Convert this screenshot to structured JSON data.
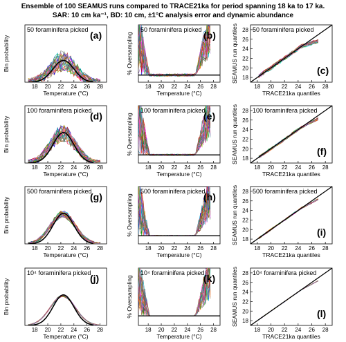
{
  "figure": {
    "title_line1": "Ensemble of 100 SEAMUS runs compared to TRACE21ka for period spanning 18 ka to 17 ka.",
    "title_line2": "SAR: 10 cm ka⁻¹, BD: 10 cm, ±1°C analysis error and dynamic abundance"
  },
  "chart_data": [
    {
      "type": "line",
      "panel": "(a)",
      "tag": "50 foraminifera picked",
      "xlabel": "Temperature (°C)",
      "ylabel": "Bin probability",
      "xlim": [
        16.5,
        29
      ],
      "ylim": [
        0,
        0.42
      ],
      "xticks": [
        18,
        20,
        22,
        24,
        26,
        28
      ],
      "ensemble_runs": 100,
      "series": [
        {
          "name": "TRACE21ka",
          "x": [
            17,
            18,
            19,
            20,
            21,
            22,
            22.5,
            23,
            24,
            25,
            26,
            27
          ],
          "values": [
            0,
            0.005,
            0.02,
            0.05,
            0.1,
            0.15,
            0.16,
            0.15,
            0.1,
            0.05,
            0.015,
            0
          ]
        }
      ]
    },
    {
      "type": "line",
      "panel": "(b)",
      "tag": "50 foraminifera picked",
      "xlabel": "Temperature (°C)",
      "ylabel": "% Oversampling",
      "xlim": [
        16.5,
        29
      ],
      "ylim": [
        -100,
        700
      ],
      "xticks": [
        18,
        20,
        22,
        24,
        26,
        28
      ],
      "ensemble_runs": 100,
      "series": [
        {
          "x": [
            16.5,
            29
          ],
          "values": [
            0,
            0
          ]
        }
      ]
    },
    {
      "type": "scatter",
      "panel": "(c)",
      "tag": "50 foraminifera picked",
      "xlabel": "TRACE21ka quantiles",
      "ylabel": "SEAMUS run quantiles",
      "xlim": [
        17,
        29
      ],
      "ylim": [
        17,
        29
      ],
      "xticks": [
        18,
        20,
        22,
        24,
        26,
        28
      ],
      "yticks": [
        18,
        20,
        22,
        24,
        26,
        28
      ],
      "ensemble_runs": 100,
      "reference": "1:1 line"
    },
    {
      "type": "line",
      "panel": "(d)",
      "tag": "100 foraminifera picked",
      "xlabel": "Temperature (°C)",
      "ylabel": "Bin probability",
      "xlim": [
        16.5,
        29
      ],
      "ylim": [
        0,
        0.3
      ],
      "xticks": [
        18,
        20,
        22,
        24,
        26,
        28
      ],
      "ensemble_runs": 100,
      "series": [
        {
          "name": "TRACE21ka",
          "x": [
            17,
            18,
            19,
            20,
            21,
            22,
            22.5,
            23,
            24,
            25,
            26,
            27
          ],
          "values": [
            0,
            0.005,
            0.02,
            0.05,
            0.1,
            0.15,
            0.16,
            0.15,
            0.1,
            0.05,
            0.015,
            0
          ]
        }
      ]
    },
    {
      "type": "line",
      "panel": "(e)",
      "tag": "100 foraminifera picked",
      "xlabel": "Temperature (°C)",
      "ylabel": "% Oversampling",
      "xlim": [
        16.5,
        29
      ],
      "ylim": [
        -100,
        600
      ],
      "xticks": [
        18,
        20,
        22,
        24,
        26,
        28
      ],
      "ensemble_runs": 100,
      "series": [
        {
          "x": [
            16.5,
            29
          ],
          "values": [
            0,
            0
          ]
        }
      ]
    },
    {
      "type": "scatter",
      "panel": "(f)",
      "tag": "100 foraminifera picked",
      "xlabel": "TRACE21ka quantiles",
      "ylabel": "SEAMUS run quantiles",
      "xlim": [
        17,
        29
      ],
      "ylim": [
        17,
        29
      ],
      "xticks": [
        18,
        20,
        22,
        24,
        26,
        28
      ],
      "yticks": [
        18,
        20,
        22,
        24,
        26,
        28
      ],
      "ensemble_runs": 100,
      "reference": "1:1 line"
    },
    {
      "type": "line",
      "panel": "(g)",
      "tag": "500 foraminifera picked",
      "xlabel": "Temperature (°C)",
      "ylabel": "Bin probability",
      "xlim": [
        16.5,
        29
      ],
      "ylim": [
        0,
        0.3
      ],
      "xticks": [
        18,
        20,
        22,
        24,
        26,
        28
      ],
      "ensemble_runs": 100,
      "series": [
        {
          "name": "TRACE21ka",
          "x": [
            17,
            18,
            19,
            20,
            21,
            22,
            22.5,
            23,
            24,
            25,
            26,
            27
          ],
          "values": [
            0,
            0.005,
            0.02,
            0.05,
            0.1,
            0.15,
            0.16,
            0.15,
            0.1,
            0.05,
            0.015,
            0
          ]
        }
      ]
    },
    {
      "type": "line",
      "panel": "(h)",
      "tag": "500 foraminifera picked",
      "xlabel": "Temperature (°C)",
      "ylabel": "% Oversampling",
      "xlim": [
        16.5,
        29
      ],
      "ylim": [
        -100,
        600
      ],
      "xticks": [
        18,
        20,
        22,
        24,
        26,
        28
      ],
      "ensemble_runs": 100,
      "series": [
        {
          "x": [
            16.5,
            29
          ],
          "values": [
            0,
            0
          ]
        }
      ]
    },
    {
      "type": "scatter",
      "panel": "(i)",
      "tag": "500 foraminifera picked",
      "xlabel": "TRACE21ka quantiles",
      "ylabel": "SEAMUS run quantiles",
      "xlim": [
        17,
        29
      ],
      "ylim": [
        17,
        29
      ],
      "xticks": [
        18,
        20,
        22,
        24,
        26,
        28
      ],
      "yticks": [
        18,
        20,
        22,
        24,
        26,
        28
      ],
      "ensemble_runs": 100,
      "reference": "1:1 line"
    },
    {
      "type": "line",
      "panel": "(j)",
      "tag": "10⁴ foraminifera picked",
      "xlabel": "Temperature (°C)",
      "ylabel": "Bin probability",
      "xlim": [
        16.5,
        29
      ],
      "ylim": [
        0,
        0.3
      ],
      "xticks": [
        18,
        20,
        22,
        24,
        26,
        28
      ],
      "ensemble_runs": 100,
      "series": [
        {
          "name": "TRACE21ka",
          "x": [
            17,
            18,
            19,
            20,
            21,
            22,
            22.5,
            23,
            24,
            25,
            26,
            27
          ],
          "values": [
            0,
            0.005,
            0.02,
            0.05,
            0.1,
            0.15,
            0.16,
            0.15,
            0.1,
            0.05,
            0.015,
            0
          ]
        }
      ]
    },
    {
      "type": "line",
      "panel": "(k)",
      "tag": "10⁴ foraminifera picked",
      "xlabel": "Temperature (°C)",
      "ylabel": "% Oversampling",
      "xlim": [
        16.5,
        29
      ],
      "ylim": [
        -100,
        500
      ],
      "xticks": [
        18,
        20,
        22,
        24,
        26,
        28
      ],
      "ensemble_runs": 100,
      "series": [
        {
          "x": [
            16.5,
            29
          ],
          "values": [
            0,
            0
          ]
        }
      ]
    },
    {
      "type": "scatter",
      "panel": "(l)",
      "tag": "10⁴ foraminifera picked",
      "xlabel": "TRACE21ka quantiles",
      "ylabel": "SEAMUS run quantiles",
      "xlim": [
        17,
        29
      ],
      "ylim": [
        17,
        29
      ],
      "xticks": [
        18,
        20,
        22,
        24,
        26,
        28
      ],
      "yticks": [
        18,
        20,
        22,
        24,
        26,
        28
      ],
      "ensemble_runs": 100,
      "reference": "1:1 line"
    }
  ],
  "palette": [
    "#1f77b4",
    "#ff7f0e",
    "#2ca02c",
    "#d62728",
    "#9467bd",
    "#8c564b",
    "#e377c2",
    "#7f7f7f",
    "#bcbd22",
    "#17becf",
    "#0000ff",
    "#ff0000",
    "#00a000",
    "#ff00ff",
    "#00cccc",
    "#c0a000",
    "#804000",
    "#008080"
  ]
}
